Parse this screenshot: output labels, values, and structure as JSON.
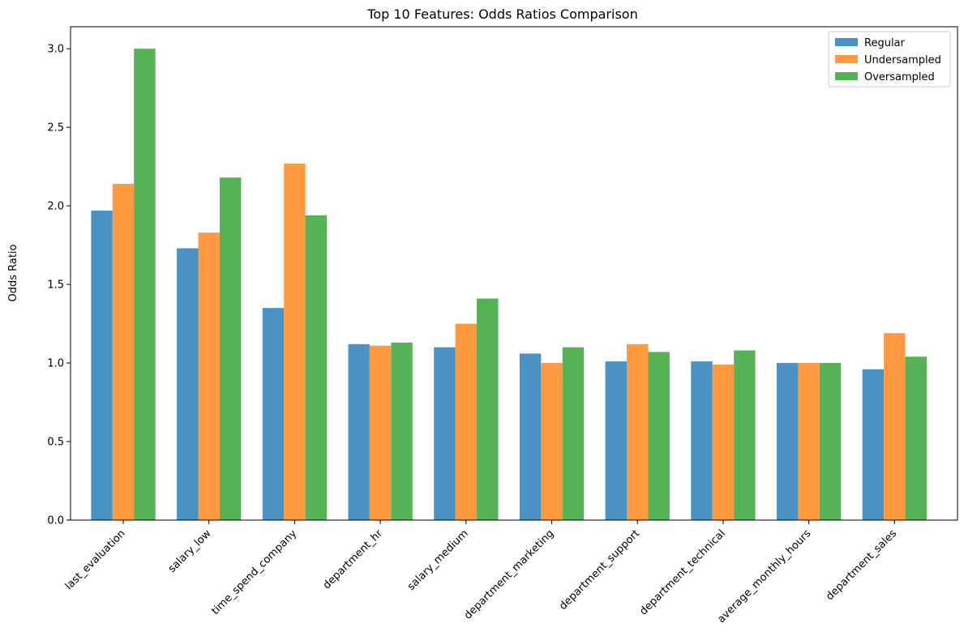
{
  "colors": {
    "regular": "#4a92c4",
    "undersampled": "#ff9a40",
    "oversampled": "#55b255",
    "axis": "#000000",
    "legend_border": "#cccccc"
  },
  "chart_data": {
    "type": "bar",
    "title": "Top 10 Features: Odds Ratios Comparison",
    "xlabel": "",
    "ylabel": "Odds Ratio",
    "ylim": [
      0,
      3.14
    ],
    "yticks": [
      0.0,
      0.5,
      1.0,
      1.5,
      2.0,
      2.5,
      3.0
    ],
    "ytick_labels": [
      "0.0",
      "0.5",
      "1.0",
      "1.5",
      "2.0",
      "2.5",
      "3.0"
    ],
    "grid": false,
    "legend_position": "top-right",
    "categories": [
      "last_evaluation",
      "salary_low",
      "time_spend_company",
      "department_hr",
      "salary_medium",
      "department_marketing",
      "department_support",
      "department_technical",
      "average_monthly_hours",
      "department_sales"
    ],
    "series": [
      {
        "name": "Regular",
        "color": "#4a92c4",
        "values": [
          1.97,
          1.73,
          1.35,
          1.12,
          1.1,
          1.06,
          1.01,
          1.01,
          1.0,
          0.96
        ]
      },
      {
        "name": "Undersampled",
        "color": "#ff9a40",
        "values": [
          2.14,
          1.83,
          2.27,
          1.11,
          1.25,
          1.0,
          1.12,
          0.99,
          1.0,
          1.19
        ]
      },
      {
        "name": "Oversampled",
        "color": "#55b255",
        "values": [
          3.0,
          2.18,
          1.94,
          1.13,
          1.41,
          1.1,
          1.07,
          1.08,
          1.0,
          1.04
        ]
      }
    ]
  }
}
